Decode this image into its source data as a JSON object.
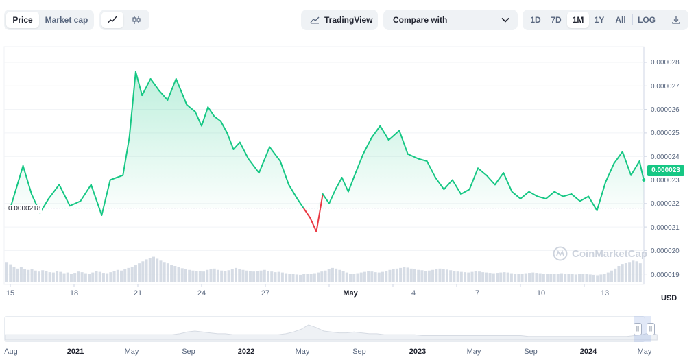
{
  "toolbar": {
    "price_tab": "Price",
    "market_cap_tab": "Market cap",
    "tradingview_label": "TradingView",
    "compare_label": "Compare with",
    "ranges": [
      "1D",
      "7D",
      "1M",
      "1Y",
      "All"
    ],
    "active_range": "1M",
    "log_label": "LOG"
  },
  "colors": {
    "up": "#16c784",
    "down": "#ea3943",
    "accent_bg": "#eff2f5"
  },
  "watermark": "CoinMarketCap",
  "currency": "USD",
  "baseline_label": "0.0000218",
  "current_price_label": "0.000023",
  "navigator_labels": [
    "Aug",
    "2021",
    "May",
    "Sep",
    "2022",
    "May",
    "Sep",
    "2023",
    "May",
    "Sep",
    "2024",
    "May"
  ],
  "chart_data": {
    "type": "line",
    "x_tick_labels": [
      "15",
      "18",
      "21",
      "24",
      "27",
      "May",
      "4",
      "7",
      "10",
      "13"
    ],
    "y_tick_labels": [
      "0.000028",
      "0.000027",
      "0.000026",
      "0.000025",
      "0.000024",
      "0.000023",
      "0.000022",
      "0.000021",
      "0.000020",
      "0.000019"
    ],
    "ylim": [
      1.89e-05,
      2.88e-05
    ],
    "baseline": 2.18e-05,
    "current": 2.3e-05,
    "grid": true,
    "series": [
      {
        "x": [
          0,
          0.3,
          0.6,
          1.0,
          1.4,
          1.8,
          2.3,
          2.8,
          3.3,
          3.8,
          4.3,
          4.7,
          5.0,
          5.3,
          5.6,
          5.9,
          6.2,
          6.6,
          7.0,
          7.4,
          7.8,
          8.3,
          8.7,
          9.0,
          9.3,
          9.6,
          9.9,
          10.2,
          10.5,
          10.8,
          11.2,
          11.7,
          12.2,
          12.7,
          13.1,
          13.5,
          13.8,
          14.1,
          14.4,
          14.7,
          15.0,
          15.3,
          15.6,
          15.9,
          16.2,
          16.6,
          17.0,
          17.4,
          17.8,
          18.3,
          18.7,
          19.2,
          19.6,
          20.0,
          20.4,
          20.8,
          21.2,
          21.6,
          22.0,
          22.4,
          22.8,
          23.2,
          23.6,
          24.0,
          24.4,
          24.8,
          25.2,
          25.6,
          26.0,
          26.4,
          26.8,
          27.2,
          27.6,
          28.0,
          28.4,
          28.8,
          29.2,
          29.6,
          29.8
        ],
        "y": [
          2.18e-05,
          2.27e-05,
          2.36e-05,
          2.24e-05,
          2.16e-05,
          2.22e-05,
          2.28e-05,
          2.19e-05,
          2.21e-05,
          2.28e-05,
          2.15e-05,
          2.3e-05,
          2.31e-05,
          2.32e-05,
          2.48e-05,
          2.76e-05,
          2.66e-05,
          2.73e-05,
          2.68e-05,
          2.64e-05,
          2.73e-05,
          2.62e-05,
          2.59e-05,
          2.53e-05,
          2.61e-05,
          2.57e-05,
          2.55e-05,
          2.5e-05,
          2.43e-05,
          2.46e-05,
          2.39e-05,
          2.33e-05,
          2.44e-05,
          2.38e-05,
          2.28e-05,
          2.22e-05,
          2.18e-05,
          2.14e-05,
          2.08e-05,
          2.24e-05,
          2.2e-05,
          2.26e-05,
          2.31e-05,
          2.25e-05,
          2.32e-05,
          2.41e-05,
          2.48e-05,
          2.53e-05,
          2.47e-05,
          2.51e-05,
          2.41e-05,
          2.39e-05,
          2.38e-05,
          2.31e-05,
          2.26e-05,
          2.3e-05,
          2.24e-05,
          2.26e-05,
          2.35e-05,
          2.32e-05,
          2.28e-05,
          2.33e-05,
          2.25e-05,
          2.22e-05,
          2.25e-05,
          2.23e-05,
          2.22e-05,
          2.25e-05,
          2.23e-05,
          2.24e-05,
          2.21e-05,
          2.23e-05,
          2.17e-05,
          2.29e-05,
          2.37e-05,
          2.42e-05,
          2.32e-05,
          2.38e-05,
          2.3e-05
        ]
      }
    ],
    "volume": [
      0.62,
      0.55,
      0.48,
      0.42,
      0.46,
      0.4,
      0.38,
      0.41,
      0.36,
      0.33,
      0.37,
      0.34,
      0.31,
      0.3,
      0.35,
      0.32,
      0.28,
      0.3,
      0.27,
      0.29,
      0.33,
      0.31,
      0.28,
      0.27,
      0.3,
      0.34,
      0.32,
      0.29,
      0.28,
      0.31,
      0.35,
      0.38,
      0.36,
      0.4,
      0.44,
      0.48,
      0.52,
      0.58,
      0.64,
      0.7,
      0.74,
      0.78,
      0.72,
      0.66,
      0.62,
      0.58,
      0.54,
      0.5,
      0.46,
      0.43,
      0.4,
      0.38,
      0.36,
      0.35,
      0.34,
      0.33,
      0.38,
      0.4,
      0.42,
      0.38,
      0.36,
      0.35,
      0.37,
      0.41,
      0.44,
      0.4,
      0.38,
      0.36,
      0.35,
      0.33,
      0.34,
      0.36,
      0.38,
      0.35,
      0.33,
      0.31,
      0.32,
      0.3,
      0.28,
      0.27,
      0.25,
      0.24,
      0.23,
      0.25,
      0.26,
      0.27,
      0.28,
      0.3,
      0.33,
      0.36,
      0.4,
      0.44,
      0.42,
      0.38,
      0.34,
      0.3,
      0.27,
      0.26,
      0.28,
      0.3,
      0.32,
      0.34,
      0.33,
      0.31,
      0.3,
      0.32,
      0.35,
      0.38,
      0.4,
      0.42,
      0.44,
      0.46,
      0.45,
      0.42,
      0.4,
      0.38,
      0.37,
      0.35,
      0.36,
      0.38,
      0.4,
      0.42,
      0.41,
      0.39,
      0.37,
      0.35,
      0.33,
      0.32,
      0.31,
      0.3,
      0.32,
      0.34,
      0.33,
      0.31,
      0.3,
      0.29,
      0.28,
      0.29,
      0.3,
      0.31,
      0.3,
      0.28,
      0.27,
      0.26,
      0.27,
      0.28,
      0.29,
      0.3,
      0.29,
      0.28,
      0.27,
      0.26,
      0.25,
      0.26,
      0.27,
      0.28,
      0.27,
      0.26,
      0.25,
      0.24,
      0.25,
      0.26,
      0.25,
      0.24,
      0.23,
      0.22,
      0.24,
      0.26,
      0.3,
      0.36,
      0.42,
      0.5,
      0.56,
      0.6,
      0.62,
      0.66,
      0.64,
      0.58
    ]
  }
}
